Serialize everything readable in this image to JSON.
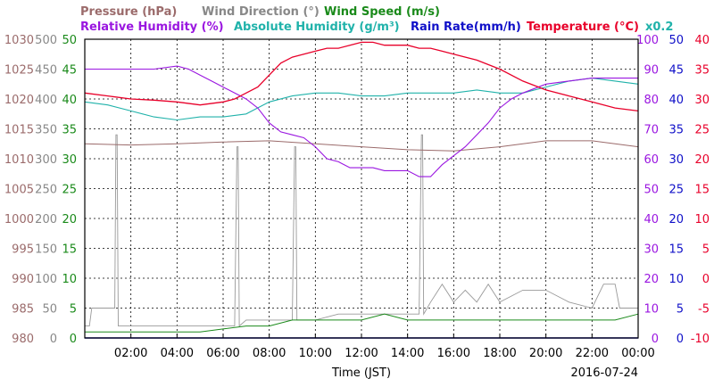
{
  "chart_data": {
    "type": "line",
    "date_label": "2016-07-24",
    "xlabel": "Time (JST)",
    "x_ticks": [
      "02:00",
      "04:00",
      "06:00",
      "08:00",
      "10:00",
      "12:00",
      "14:00",
      "16:00",
      "18:00",
      "20:00",
      "22:00",
      "00:00"
    ],
    "grid": true,
    "legend": [
      {
        "label": "Pressure (hPa)",
        "color": "#9b6b6b"
      },
      {
        "label": "Wind Direction (°)",
        "color": "#888888"
      },
      {
        "label": "Wind Speed (m/s)",
        "color": "#1a8a1a"
      },
      {
        "label": "Relative Humidity (%)",
        "color": "#9a16e0"
      },
      {
        "label": "Absolute Humidity (g/m³)",
        "color": "#20b2aa"
      },
      {
        "label": "Rain Rate(mm/h)",
        "color": "#1010c8"
      },
      {
        "label": "Temperature (°C)",
        "color": "#e8002a"
      },
      {
        "label": "x0.2",
        "color": "#20b2aa"
      }
    ],
    "axes": {
      "pressure": {
        "ticks": [
          "980",
          "985",
          "990",
          "995",
          "1000",
          "1005",
          "1010",
          "1015",
          "1020",
          "1025",
          "1030"
        ],
        "color": "#9b6b6b",
        "range": [
          980,
          1030
        ]
      },
      "wind_direction": {
        "ticks": [
          "0",
          "50",
          "100",
          "150",
          "200",
          "250",
          "300",
          "350",
          "400",
          "450",
          "500"
        ],
        "color": "#888888",
        "range": [
          0,
          500
        ]
      },
      "wind_speed": {
        "ticks": [
          "0",
          "5",
          "10",
          "15",
          "20",
          "25",
          "30",
          "35",
          "40",
          "45",
          "50"
        ],
        "color": "#1a8a1a",
        "range": [
          0,
          50
        ]
      },
      "humidity": {
        "ticks": [
          "0",
          "10",
          "20",
          "30",
          "40",
          "50",
          "60",
          "70",
          "80",
          "90",
          "100"
        ],
        "color": "#9a16e0",
        "range": [
          0,
          100
        ]
      },
      "rain_rate": {
        "ticks": [
          "0",
          "5",
          "10",
          "15",
          "20",
          "25",
          "30",
          "35",
          "40",
          "45",
          "50"
        ],
        "color": "#1010c8",
        "range": [
          0,
          50
        ]
      },
      "temperature": {
        "ticks": [
          "-10",
          "-5",
          "0",
          "5",
          "10",
          "15",
          "20",
          "25",
          "30",
          "35",
          "40"
        ],
        "color": "#e8002a",
        "range": [
          -10,
          40
        ]
      }
    },
    "series": [
      {
        "key": "relative_humidity",
        "hours": [
          0,
          1,
          2,
          3,
          4,
          4.5,
          5,
          5.5,
          6,
          6.5,
          7,
          7.5,
          8,
          8.5,
          9,
          9.5,
          10,
          10.5,
          11,
          11.5,
          12,
          12.5,
          13,
          13.5,
          14,
          14.5,
          15,
          15.5,
          16,
          16.5,
          17,
          17.5,
          18,
          18.5,
          19,
          20,
          21,
          22,
          23,
          24
        ],
        "values": [
          90,
          90,
          90,
          90,
          91,
          90,
          88,
          86,
          84,
          82,
          80,
          77,
          72,
          69,
          68,
          67,
          64,
          60,
          59,
          57,
          57,
          57,
          56,
          56,
          56,
          54,
          54,
          58,
          61,
          64,
          68,
          72,
          77,
          80,
          82,
          85,
          86,
          87,
          87,
          87
        ]
      },
      {
        "key": "absolute_humidity",
        "hours": [
          0,
          1,
          2,
          3,
          4,
          5,
          6,
          7,
          8,
          9,
          10,
          11,
          12,
          13,
          14,
          15,
          16,
          17,
          18,
          19,
          20,
          21,
          22,
          23,
          24
        ],
        "values": [
          79,
          78,
          76,
          74,
          73,
          74,
          74,
          75,
          79,
          81,
          82,
          82,
          81,
          81,
          82,
          82,
          82,
          83,
          82,
          82,
          84,
          86,
          87,
          86,
          85
        ]
      },
      {
        "key": "temperature",
        "hours": [
          0,
          1,
          2,
          3,
          4,
          5,
          6,
          6.5,
          7,
          7.5,
          8,
          8.5,
          9,
          9.5,
          10,
          10.5,
          11,
          11.5,
          12,
          12.5,
          13,
          13.5,
          14,
          14.5,
          15,
          15.5,
          16,
          17,
          18,
          19,
          20,
          21,
          22,
          23,
          24
        ],
        "values": [
          31,
          30.5,
          30,
          29.8,
          29.5,
          29,
          29.5,
          30,
          31,
          32,
          34,
          36,
          37,
          37.5,
          38,
          38.5,
          38.5,
          39,
          39.5,
          39.5,
          39,
          39,
          39,
          38.5,
          38.5,
          38,
          37.5,
          36.5,
          35,
          33,
          31.5,
          30.5,
          29.5,
          28.5,
          28
        ]
      },
      {
        "key": "pressure",
        "hours": [
          0,
          2,
          4,
          6,
          8,
          10,
          12,
          14,
          16,
          18,
          20,
          22,
          24
        ],
        "values": [
          1012.5,
          1012.3,
          1012.5,
          1012.8,
          1013,
          1012.5,
          1012,
          1011.5,
          1011.3,
          1012,
          1013,
          1013,
          1012
        ]
      },
      {
        "key": "wind_direction",
        "hours": [
          0,
          0.2,
          0.3,
          1,
          1.3,
          1.35,
          1.4,
          1.45,
          2,
          3,
          5,
          6.5,
          6.6,
          6.65,
          6.7,
          7,
          8,
          9,
          9.1,
          9.15,
          9.2,
          9.3,
          10,
          11,
          12,
          13,
          14,
          14.5,
          14.6,
          14.65,
          14.7,
          15,
          15.5,
          16,
          16.5,
          17,
          17.5,
          18,
          19,
          20,
          21,
          22,
          22.5,
          23,
          23.2,
          23.5,
          24
        ],
        "values": [
          20,
          20,
          50,
          50,
          50,
          340,
          340,
          20,
          20,
          20,
          20,
          20,
          320,
          320,
          20,
          30,
          30,
          30,
          320,
          320,
          30,
          30,
          30,
          40,
          40,
          40,
          40,
          40,
          340,
          340,
          40,
          60,
          90,
          60,
          80,
          60,
          90,
          60,
          80,
          80,
          60,
          50,
          90,
          90,
          50,
          50,
          50
        ]
      },
      {
        "key": "wind_speed",
        "hours": [
          0,
          1,
          2,
          3,
          4,
          5,
          6,
          7,
          8,
          9,
          10,
          11,
          12,
          13,
          14,
          15,
          16,
          17,
          18,
          19,
          20,
          21,
          22,
          23,
          24
        ],
        "values": [
          1,
          1,
          1,
          1,
          1,
          1,
          1.5,
          2,
          2,
          3,
          3,
          3,
          3,
          4,
          3,
          3,
          3,
          3,
          3,
          3,
          3,
          3,
          3,
          3,
          4
        ]
      },
      {
        "key": "rain_rate",
        "hours": [
          0,
          24
        ],
        "values": [
          0,
          0
        ]
      }
    ]
  }
}
